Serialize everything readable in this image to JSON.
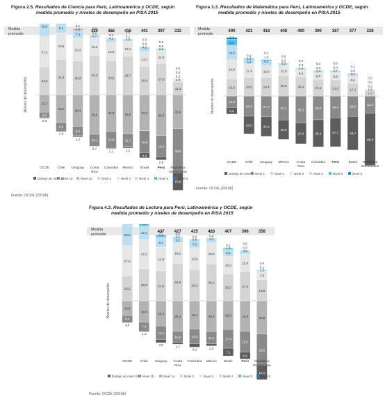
{
  "colors": {
    "debajo_1b": "#5d5d5d",
    "nivel_1b": "#8a8a8a",
    "nivel_1a": "#b3b3b3",
    "nivel_2": "#d4d4d4",
    "nivel_3": "#e6e6e6",
    "nivel_4": "#b9dff0",
    "nivel_5": "#5cbde6",
    "nivel_6": "#0e8fc9",
    "average_band": "#e8e8e8"
  },
  "figures": [
    {
      "number": "Figura 2.5.",
      "title_line1": "Resultados de Ciencia para Perú, Latinoamérica y OCDE, según",
      "title_line2": "medida promedio y niveles de desempeño en PISA 2015",
      "source": "Fuente: OCDE (2016b)",
      "avg_label": "Medida promedio",
      "y_axis_label": "Niveles de desempeño",
      "chart_data": {
        "type": "bar",
        "stacked": "diverging",
        "categories": [
          "OCDE",
          "Chile",
          "Uruguay",
          "Costa Rica",
          "Colombia",
          "México",
          "Brasil",
          "Perú",
          "República Dominicana"
        ],
        "averages": [
          "493",
          "447",
          "435",
          "420",
          "416",
          "416",
          "401",
          "397",
          "332"
        ],
        "series": [
          {
            "name": "Debajo de nivel 1b",
            "values": [
              0.6,
              1.0,
              1.2,
              0.7,
              1.1,
              1.1,
              4.4,
              2.8,
              15.9
            ]
          },
          {
            "name": "Nivel 1b",
            "values": [
              4.9,
              6.9,
              8.2,
              10.1,
              14.5,
              11.7,
              19.9,
              19.0,
              39.6
            ]
          },
          {
            "name": "Nivel 1a",
            "values": [
              15.7,
              25.0,
              28.4,
              35.6,
              32.8,
              35.0,
              32.4,
              36.7,
              30.4
            ]
          },
          {
            "name": "Nivel 2",
            "values": [
              24.8,
              31.8,
              30.3,
              35.5,
              30.9,
              34.7,
              25.4,
              27.9,
              11.3
            ]
          },
          {
            "name": "Nivel 3",
            "values": [
              27.2,
              23.8,
              20.3,
              15.2,
              15.9,
              13.1,
              13.1,
              11.5,
              2.6
            ]
          },
          {
            "name": "Nivel 4",
            "values": [
              19.0,
              9.1,
              7.4,
              2.7,
              4.1,
              2.3,
              4.2,
              2.0,
              0.2
            ]
          },
          {
            "name": "Nivel 5",
            "values": [
              6.7,
              1.2,
              1.2,
              0.1,
              0.3,
              0.1,
              0.6,
              0.0,
              0.0
            ]
          },
          {
            "name": "Nivel 6",
            "values": [
              1.1,
              0.0,
              0.1,
              0.0,
              0.0,
              0.0,
              0.0,
              0.0,
              0.0
            ]
          }
        ]
      }
    },
    {
      "number": "Figura 3.3.",
      "title_line1": "Resultados de Matemática para Perú, Latinoamérica y OCDE, según",
      "title_line2": "medida promedio y niveles de desempeño en PISA 2015",
      "source": "Fuente: OCDE (2016b)",
      "avg_label": "Medida promedio",
      "y_axis_label": "Niveles de desempeño",
      "chart_data": {
        "type": "bar",
        "stacked": "diverging",
        "categories": [
          "OCDE",
          "Chile",
          "Uruguay",
          "México",
          "Costa Rica",
          "Colombia",
          "Perú",
          "Brasil",
          "República Dominicana"
        ],
        "averages": [
          "490",
          "423",
          "418",
          "408",
          "400",
          "390",
          "387",
          "377",
          "328"
        ],
        "series": [
          {
            "name": "Debajo de nivel 1",
            "values": [
              8.5,
              23.0,
              25.4,
              25.5,
              27.4,
              35.4,
              37.7,
              43.7,
              68.3
            ]
          },
          {
            "name": "Nivel 1",
            "values": [
              14.9,
              26.3,
              27.0,
              31.1,
              35.1,
              30.9,
              28.4,
              26.5,
              22.2
            ]
          },
          {
            "name": "Nivel 2",
            "values": [
              22.5,
              24.5,
              24.4,
              26.9,
              25.1,
              21.5,
              21.0,
              17.2,
              7.7
            ]
          },
          {
            "name": "Nivel 3",
            "values": [
              24.8,
              17.4,
              15.5,
              12.9,
              9.4,
              9.5,
              9.8,
              8.6,
              1.5
            ]
          },
          {
            "name": "Nivel 4",
            "values": [
              18.6,
              6.4,
              6.2,
              3.2,
              2.4,
              2.4,
              2.7,
              3.1,
              0.2
            ]
          },
          {
            "name": "Nivel 5",
            "values": [
              8.4,
              1.3,
              1.5,
              0.3,
              0.3,
              0.3,
              0.4,
              0.8,
              0.0
            ]
          },
          {
            "name": "Nivel 6",
            "values": [
              2.3,
              0.1,
              0.2,
              0.0,
              0.0,
              0.0,
              0.0,
              0.1,
              0.0
            ]
          }
        ]
      }
    },
    {
      "number": "Figura 4.3.",
      "title_line1": "Resultados de Lectura para Perú, Latinoamérica y OCDE, según",
      "title_line2": "medida promedio y niveles de desempeño en PISA 2015",
      "source": "Fuente: OCDE (2016b)",
      "avg_label": "Medida promedio",
      "y_axis_label": "Niveles de desempeño",
      "chart_data": {
        "type": "bar",
        "stacked": "diverging",
        "categories": [
          "OCDE",
          "Chile",
          "Uruguay",
          "Costa Rica",
          "Colombia",
          "México",
          "Brasil",
          "Perú",
          "República Dominicana"
        ],
        "averages": [
          "493",
          "459",
          "437",
          "427",
          "425",
          "423",
          "407",
          "398",
          "358"
        ],
        "series": [
          {
            "name": "Debajo de nivel 1b",
            "values": [
              1.3,
              1.3,
              3.0,
              1.7,
              3.2,
              2.0,
              7.1,
              6.4,
              13.1
            ]
          },
          {
            "name": "Nivel 1b",
            "values": [
              5.2,
              7.4,
              12.5,
              10.2,
              13.6,
              11.4,
              17.4,
              19.2,
              29.2
            ]
          },
          {
            "name": "Nivel 1a",
            "values": [
              13.6,
              19.8,
              23.3,
              28.3,
              26.1,
              28.4,
              26.5,
              28.3,
              30.8
            ]
          },
          {
            "name": "Nivel 2",
            "values": [
              23.2,
              29.9,
              27.8,
              34.6,
              29.2,
              34.2,
              25.0,
              27.3,
              19.5
            ]
          },
          {
            "name": "Nivel 3",
            "values": [
              27.9,
              27.0,
              21.8,
              19.2,
              19.9,
              19.5,
              16.2,
              15.8,
              7.8
            ]
          },
          {
            "name": "Nivel 4",
            "values": [
              20.5,
              12.4,
              9.3,
              5.2,
              7.0,
              4.2,
              6.4,
              3.5,
              1.3
            ]
          },
          {
            "name": "Nivel 5",
            "values": [
              7.2,
              2.2,
              2.3,
              0.6,
              0.9,
              0.3,
              1.3,
              0.3,
              0.1
            ]
          },
          {
            "name": "Nivel 6",
            "values": [
              1.1,
              0.1,
              0.0,
              0.0,
              0.0,
              0.0,
              0.1,
              0.0,
              0.0
            ]
          }
        ]
      }
    }
  ]
}
